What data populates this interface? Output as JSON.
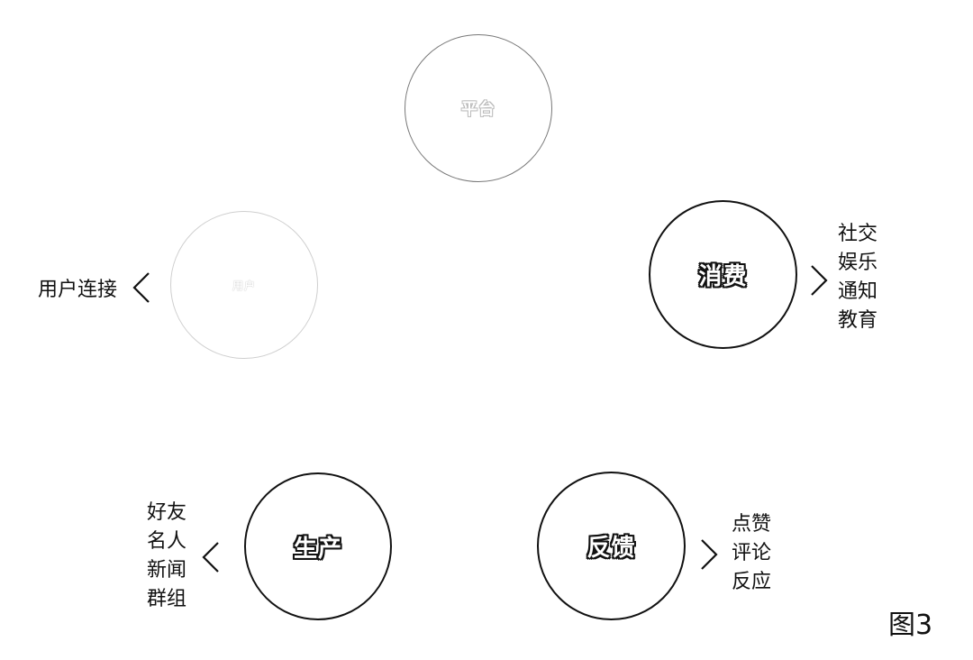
{
  "diagram": {
    "top_circle": {
      "label": "平台"
    },
    "left_circle": {
      "label": "用户",
      "side_label": "用户连接"
    },
    "consume": {
      "label": "消费",
      "items": [
        "社交",
        "娱乐",
        "通知",
        "教育"
      ]
    },
    "produce": {
      "label": "生产",
      "items": [
        "好友",
        "名人",
        "新闻",
        "群组"
      ]
    },
    "feedback": {
      "label": "反馈",
      "items": [
        "点赞",
        "评论",
        "反应"
      ]
    },
    "figure_label": "图3"
  }
}
